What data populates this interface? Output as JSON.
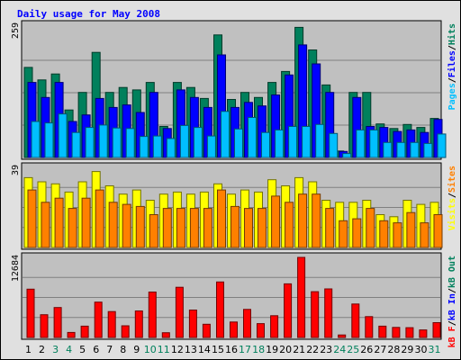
{
  "chart_data": {
    "type": "bar",
    "title": "Daily usage for May 2008",
    "categories": [
      "1",
      "2",
      "3",
      "4",
      "5",
      "6",
      "7",
      "8",
      "9",
      "10",
      "11",
      "12",
      "13",
      "14",
      "15",
      "16",
      "17",
      "18",
      "19",
      "20",
      "21",
      "22",
      "23",
      "24",
      "25",
      "26",
      "27",
      "28",
      "29",
      "30",
      "31"
    ],
    "weekend_days": [
      "3",
      "4",
      "10",
      "11",
      "17",
      "18",
      "24",
      "25",
      "31"
    ],
    "panels": [
      {
        "name": "hits-files-pages",
        "ymax_label": "259",
        "ymax": 259,
        "right_label": [
          "Pages",
          "/",
          "Files",
          "/",
          "Hits"
        ],
        "series": [
          {
            "name": "Hits",
            "color": "#00805c",
            "values": [
              180,
              155,
              167,
              95,
              130,
              210,
              130,
              140,
              135,
              150,
              62,
              150,
              140,
              118,
              245,
              116,
              130,
              120,
              150,
              172,
              260,
              215,
              145,
              13,
              130,
              130,
              67,
              58,
              66,
              60,
              78
            ]
          },
          {
            "name": "Files",
            "color": "#0000ff",
            "values": [
              150,
              120,
              150,
              72,
              85,
              118,
              100,
              105,
              90,
              130,
              58,
              135,
              120,
              100,
              205,
              100,
              110,
              103,
              125,
              165,
              225,
              187,
              130,
              12,
              120,
              62,
              60,
              52,
              55,
              50,
              76
            ]
          },
          {
            "name": "Pages",
            "color": "#00bfff",
            "values": [
              72,
              69,
              87,
              50,
              60,
              65,
              59,
              58,
              42,
              43,
              38,
              64,
              60,
              43,
              92,
              57,
              80,
              50,
              55,
              62,
              62,
              66,
              48,
              8,
              55,
              55,
              30,
              30,
              30,
              28,
              47
            ]
          }
        ]
      },
      {
        "name": "visits-sites",
        "ymax_label": "39",
        "ymax": 39,
        "right_label": [
          "Visits",
          "/",
          "Sites"
        ],
        "series": [
          {
            "name": "Visits",
            "color": "#ffff00",
            "values": [
              34,
              32,
              31,
              27,
              32,
              37,
              30,
              26,
              28,
              23,
              26,
              27,
              26,
              27,
              31,
              26,
              28,
              27,
              33,
              30,
              34,
              32,
              23,
              22,
              22,
              23,
              16,
              15,
              23,
              21,
              22
            ]
          },
          {
            "name": "Sites",
            "color": "#ff8000",
            "values": [
              28,
              22,
              24,
              19,
              24,
              28,
              22,
              21,
              20,
              16,
              19,
              19,
              19,
              19,
              28,
              20,
              19,
              19,
              25,
              22,
              26,
              26,
              19,
              13,
              14,
              19,
              13,
              12,
              17,
              12,
              16
            ]
          }
        ]
      },
      {
        "name": "kbytes",
        "ymax_label": "12684",
        "ymax": 12684,
        "right_label": [
          "kB F",
          "/",
          "kB In",
          "/",
          "kB Out"
        ],
        "series": [
          {
            "name": "kB F",
            "color": "#ff0000",
            "values": [
              7650,
              3600,
              4750,
              800,
              1800,
              5600,
              4100,
              1850,
              4200,
              7200,
              750,
              7950,
              4350,
              2100,
              8800,
              2450,
              4450,
              2200,
              3450,
              8500,
              12684,
              7250,
              7700,
              400,
              5300,
              3300,
              1800,
              1600,
              1550,
              1200,
              2350
            ]
          }
        ]
      }
    ]
  }
}
